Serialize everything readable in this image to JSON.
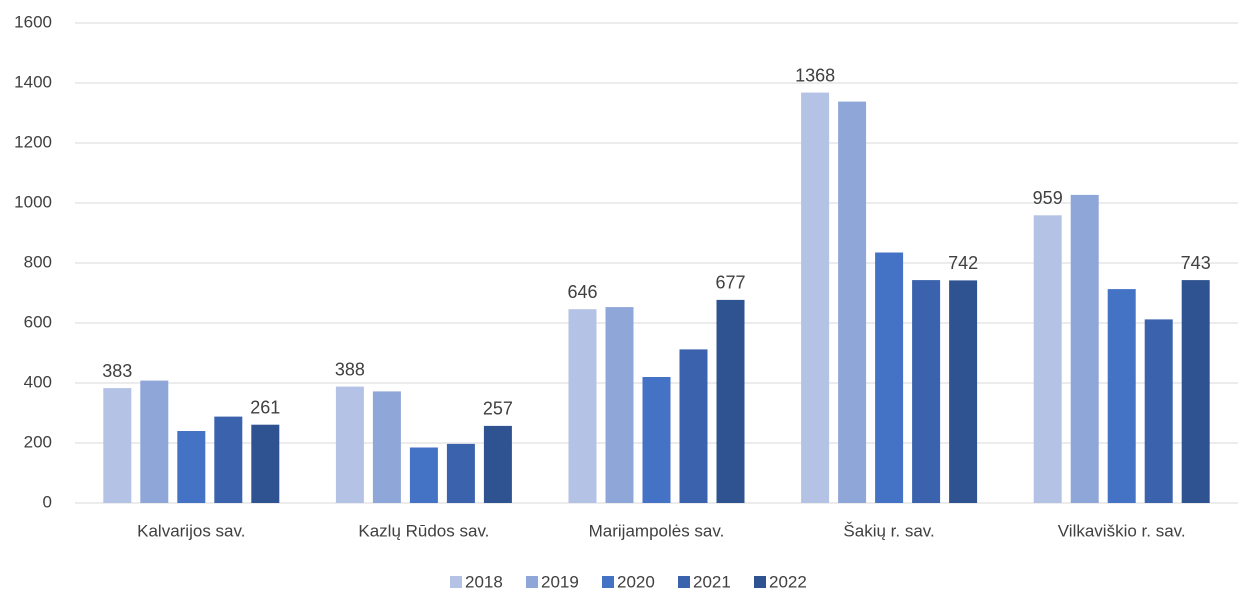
{
  "chart_data": {
    "type": "bar",
    "categories": [
      "Kalvarijos sav.",
      "Kazlų Rūdos sav.",
      "Marijampolės sav.",
      "Šakių r. sav.",
      "Vilkaviškio r. sav."
    ],
    "series": [
      {
        "name": "2018",
        "color": "#b4c2e5",
        "values": [
          383,
          388,
          646,
          1368,
          959
        ],
        "data_labels": true
      },
      {
        "name": "2019",
        "color": "#8fa6d8",
        "values": [
          408,
          372,
          653,
          1338,
          1027
        ],
        "data_labels": false
      },
      {
        "name": "2020",
        "color": "#4472c4",
        "values": [
          240,
          185,
          420,
          835,
          713
        ],
        "data_labels": false
      },
      {
        "name": "2021",
        "color": "#3a62ad",
        "values": [
          288,
          197,
          512,
          743,
          612
        ],
        "data_labels": false
      },
      {
        "name": "2022",
        "color": "#2f5290",
        "values": [
          261,
          257,
          677,
          742,
          743
        ],
        "data_labels": true
      }
    ],
    "ylim": [
      0,
      1600
    ],
    "yticks": [
      0,
      200,
      400,
      600,
      800,
      1000,
      1200,
      1400,
      1600
    ],
    "grid": true,
    "legend": "bottom"
  }
}
